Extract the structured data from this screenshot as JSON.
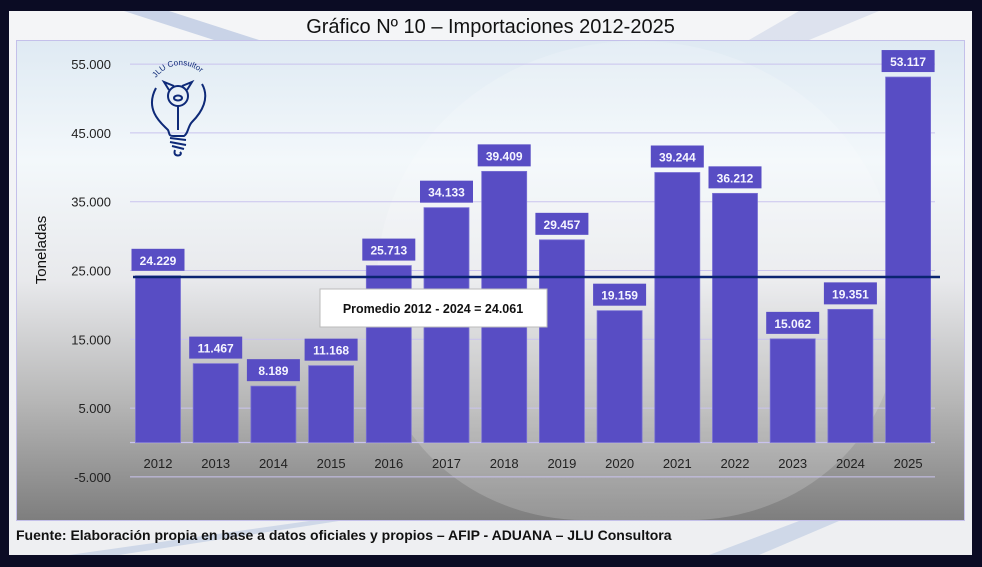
{
  "chart_data": {
    "type": "bar",
    "title": "Gráfico Nº 10 – Importaciones 2012-2025",
    "xlabel": "",
    "ylabel": "Toneladas",
    "ylim": [
      -5000,
      55000
    ],
    "yticks": [
      -5000,
      5000,
      15000,
      25000,
      35000,
      45000,
      55000
    ],
    "ytick_labels": [
      "-5.000",
      "5.000",
      "15.000",
      "25.000",
      "35.000",
      "45.000",
      "55.000"
    ],
    "grid": true,
    "categories": [
      "2012",
      "2013",
      "2014",
      "2015",
      "2016",
      "2017",
      "2018",
      "2019",
      "2020",
      "2021",
      "2022",
      "2023",
      "2024",
      "2025"
    ],
    "values": [
      24229,
      11467,
      8189,
      11168,
      25713,
      34133,
      39409,
      29457,
      19159,
      39244,
      36212,
      15062,
      19351,
      53117
    ],
    "data_labels": [
      "24.229",
      "11.467",
      "8.189",
      "11.168",
      "25.713",
      "34.133",
      "39.409",
      "29.457",
      "19.159",
      "39.244",
      "36.212",
      "15.062",
      "19.351",
      "53.117"
    ],
    "bar_color": "#584dc4",
    "reference_line": {
      "value": 24061,
      "label": "Promedio 2012 - 2024 = 24.061",
      "color": "#0a2470"
    },
    "source": "Fuente: Elaboración propia en base a datos oficiales y propios – AFIP - ADUANA – JLU Consultora",
    "logo_text": "JLU Consultora©"
  }
}
